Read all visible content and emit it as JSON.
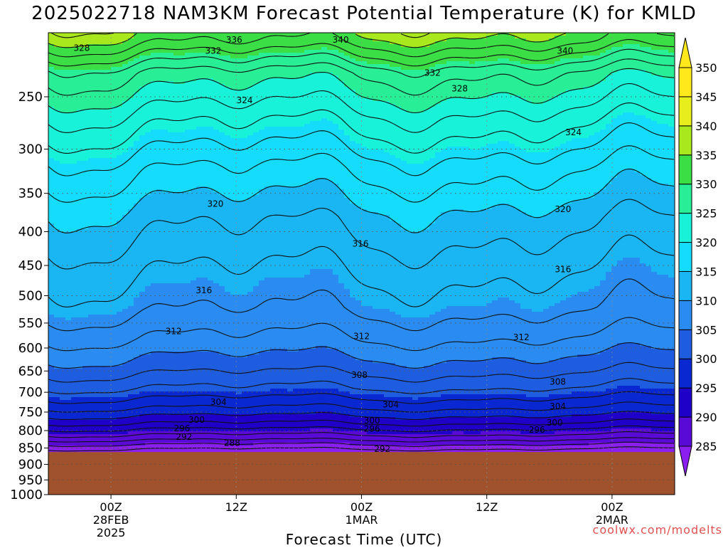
{
  "title": "2025022718 NAM3KM Forecast Potential Temperature (K) for KMLD",
  "watermark": "coolwx.com/modelts",
  "chart_data": {
    "type": "heatmap",
    "title": "2025022718 NAM3KM Forecast Potential Temperature (K) for KMLD",
    "xlabel": "Forecast Time (UTC)",
    "ylabel": "",
    "y_scale": "log-pressure",
    "y_range_hPa": [
      1000,
      200
    ],
    "x_range_hours": [
      0,
      60
    ],
    "x_ticks": [
      {
        "hour": 6,
        "labels": [
          "00Z",
          "28FEB",
          "2025"
        ]
      },
      {
        "hour": 18,
        "labels": [
          "12Z"
        ]
      },
      {
        "hour": 30,
        "labels": [
          "00Z",
          "1MAR"
        ]
      },
      {
        "hour": 42,
        "labels": [
          "12Z"
        ]
      },
      {
        "hour": 54,
        "labels": [
          "00Z",
          "2MAR"
        ]
      }
    ],
    "y_ticks": [
      250,
      300,
      350,
      400,
      450,
      500,
      550,
      600,
      650,
      700,
      750,
      800,
      850,
      900,
      950,
      1000
    ],
    "colorbar": {
      "levels": [
        285,
        290,
        295,
        300,
        305,
        310,
        315,
        320,
        325,
        330,
        335,
        340,
        345,
        350
      ],
      "colors": [
        "#8a1ff0",
        "#5a0ad6",
        "#1e00c8",
        "#0a28d2",
        "#1f5de0",
        "#2a8cf0",
        "#1ab6f4",
        "#14dcfa",
        "#18f2d8",
        "#28ef96",
        "#3cde46",
        "#a8e81c",
        "#e6ef1c",
        "#ffe81c"
      ],
      "extend": "both"
    },
    "contour_interval": 2,
    "contour_labels": [
      {
        "value": 336,
        "hour": 17.8,
        "hPa": 205
      },
      {
        "value": 340,
        "hour": 28.0,
        "hPa": 205
      },
      {
        "value": 328,
        "hour": 3.2,
        "hPa": 211
      },
      {
        "value": 332,
        "hour": 15.8,
        "hPa": 213
      },
      {
        "value": 340,
        "hour": 49.5,
        "hPa": 213
      },
      {
        "value": 332,
        "hour": 36.8,
        "hPa": 230
      },
      {
        "value": 328,
        "hour": 39.4,
        "hPa": 243
      },
      {
        "value": 324,
        "hour": 18.8,
        "hPa": 253
      },
      {
        "value": 324,
        "hour": 50.3,
        "hPa": 283
      },
      {
        "value": 320,
        "hour": 16.0,
        "hPa": 363
      },
      {
        "value": 320,
        "hour": 49.3,
        "hPa": 370
      },
      {
        "value": 316,
        "hour": 29.9,
        "hPa": 417
      },
      {
        "value": 316,
        "hour": 49.3,
        "hPa": 456
      },
      {
        "value": 316,
        "hour": 14.9,
        "hPa": 491
      },
      {
        "value": 312,
        "hour": 12.0,
        "hPa": 566
      },
      {
        "value": 312,
        "hour": 30.0,
        "hPa": 576
      },
      {
        "value": 312,
        "hour": 45.3,
        "hPa": 578
      },
      {
        "value": 308,
        "hour": 29.8,
        "hPa": 659
      },
      {
        "value": 308,
        "hour": 48.8,
        "hPa": 675
      },
      {
        "value": 304,
        "hour": 16.3,
        "hPa": 724
      },
      {
        "value": 304,
        "hour": 32.8,
        "hPa": 731
      },
      {
        "value": 304,
        "hour": 48.8,
        "hPa": 735
      },
      {
        "value": 300,
        "hour": 14.2,
        "hPa": 771
      },
      {
        "value": 300,
        "hour": 31.0,
        "hPa": 773
      },
      {
        "value": 300,
        "hour": 48.5,
        "hPa": 778
      },
      {
        "value": 296,
        "hour": 12.8,
        "hPa": 794
      },
      {
        "value": 296,
        "hour": 31.0,
        "hPa": 795
      },
      {
        "value": 296,
        "hour": 46.8,
        "hPa": 798
      },
      {
        "value": 292,
        "hour": 13.0,
        "hPa": 818
      },
      {
        "value": 292,
        "hour": 32.0,
        "hPa": 853
      },
      {
        "value": 288,
        "hour": 17.6,
        "hPa": 835
      }
    ],
    "terrain": {
      "surface_hPa": 862,
      "color": "#a0522d"
    },
    "grid": true
  }
}
